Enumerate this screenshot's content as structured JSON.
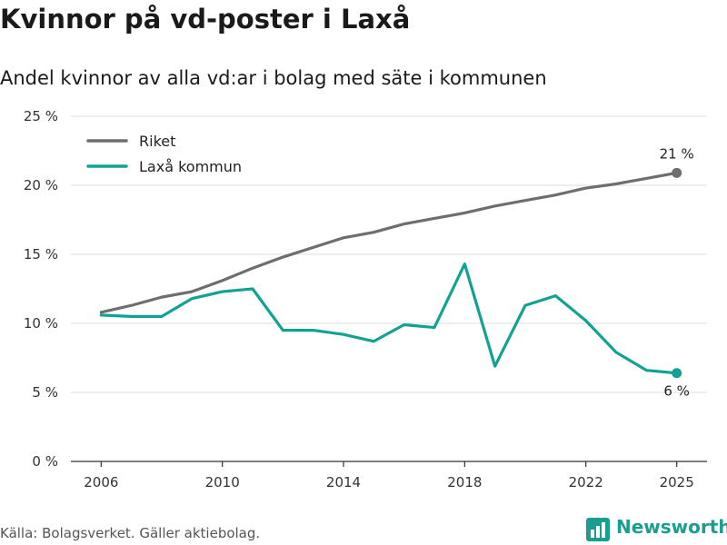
{
  "header": {
    "title": "Kvinnor på vd-poster i Laxå",
    "subtitle": "Andel kvinnor av alla vd:ar i bolag med säte i kommunen"
  },
  "footer": {
    "source": "Källa: Bolagsverket. Gäller aktiebolag.",
    "brand": "Newsworthy",
    "brand_color": "#1a9e8f"
  },
  "chart_data": {
    "type": "line",
    "x": [
      2006,
      2007,
      2008,
      2009,
      2010,
      2011,
      2012,
      2013,
      2014,
      2015,
      2016,
      2017,
      2018,
      2019,
      2020,
      2021,
      2022,
      2023,
      2024,
      2025
    ],
    "series": [
      {
        "name": "Riket",
        "color": "#6e6e70",
        "values": [
          10.8,
          11.3,
          11.9,
          12.3,
          13.1,
          14.0,
          14.8,
          15.5,
          16.2,
          16.6,
          17.2,
          17.6,
          18.0,
          18.5,
          18.9,
          19.3,
          19.8,
          20.1,
          20.5,
          20.9
        ],
        "end_label": "21 %"
      },
      {
        "name": "Laxå kommun",
        "color": "#12a294",
        "values": [
          10.6,
          10.5,
          10.5,
          11.8,
          12.3,
          12.5,
          9.5,
          9.5,
          9.2,
          8.7,
          9.9,
          9.7,
          14.3,
          6.9,
          11.3,
          12.0,
          10.2,
          7.9,
          6.6,
          6.4
        ],
        "end_label": "6 %"
      }
    ],
    "x_ticks": [
      "2006",
      "2010",
      "2014",
      "2018",
      "2022",
      "2025"
    ],
    "y_ticks": [
      "0 %",
      "5 %",
      "10 %",
      "15 %",
      "20 %",
      "25 %"
    ],
    "ylim": [
      0,
      25
    ],
    "xlim": [
      2005,
      2026
    ],
    "grid": true,
    "legend_position": "top-left"
  }
}
